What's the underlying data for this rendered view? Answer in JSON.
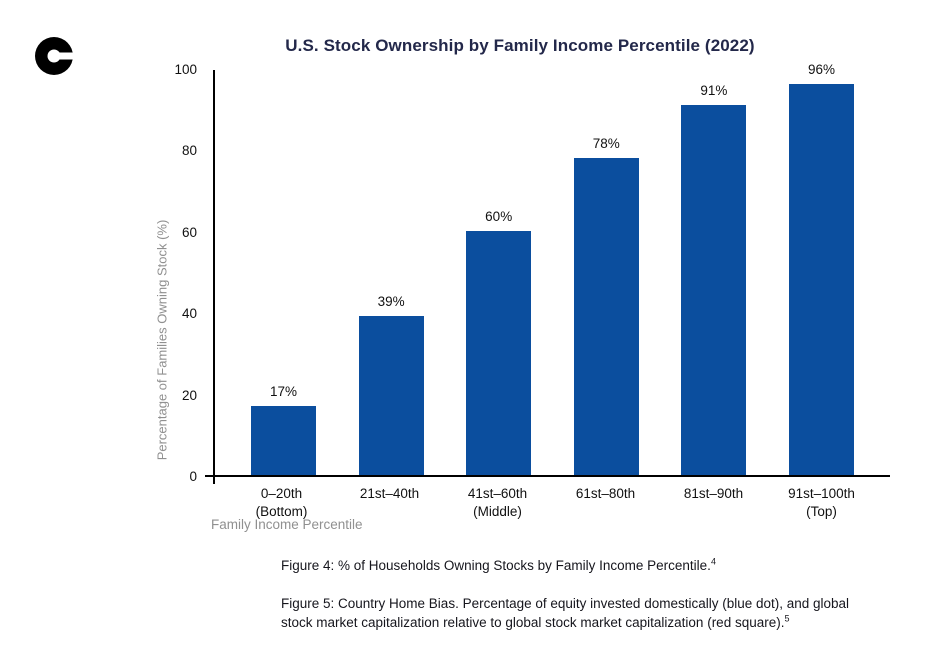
{
  "logo": {
    "name": "coinbase-c-mark",
    "color": "#000000"
  },
  "colors": {
    "background": "#ffffff",
    "bar": "#0b4e9e",
    "title": "#23284a",
    "axis_label": "#909090",
    "text": "#16161d"
  },
  "chart_data": {
    "type": "bar",
    "title": "U.S. Stock Ownership by Family Income Percentile (2022)",
    "xlabel": "Family Income Percentile",
    "ylabel": "Percentage of Families Owning Stock (%)",
    "categories": [
      {
        "label": "0–20th",
        "sublabel": "(Bottom)"
      },
      {
        "label": "21st–40th",
        "sublabel": ""
      },
      {
        "label": "41st–60th",
        "sublabel": "(Middle)"
      },
      {
        "label": "61st–80th",
        "sublabel": ""
      },
      {
        "label": "81st–90th",
        "sublabel": ""
      },
      {
        "label": "91st–100th",
        "sublabel": "(Top)"
      }
    ],
    "values": [
      17,
      39,
      60,
      78,
      91,
      96
    ],
    "value_labels": [
      "17%",
      "39%",
      "60%",
      "78%",
      "91%",
      "96%"
    ],
    "yticks": [
      0,
      20,
      40,
      60,
      80,
      100
    ],
    "ylim": [
      0,
      100
    ],
    "grid": false,
    "legend": "none",
    "bar_color": "#0b4e9e"
  },
  "captions": {
    "figure4": {
      "text": "Figure 4: % of Households Owning Stocks by Family Income Percentile.",
      "sup": "4"
    },
    "figure5": {
      "text": "Figure 5: Country Home Bias. Percentage of equity invested domestically (blue dot), and global stock market capitalization relative to global stock market capitalization (red square).",
      "sup": "5"
    }
  }
}
